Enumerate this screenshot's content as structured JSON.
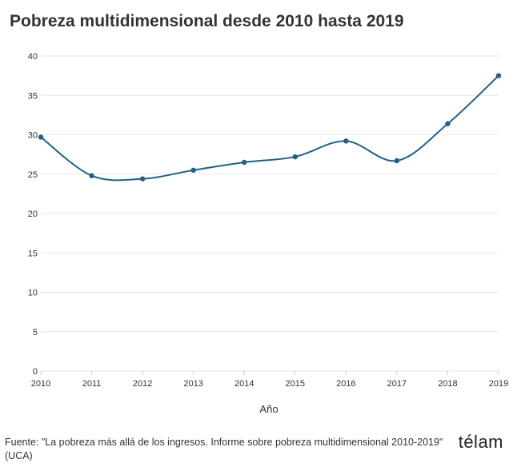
{
  "chart_data": {
    "type": "line",
    "title": "Pobreza multidimensional desde 2010 hasta 2019",
    "xlabel": "Año",
    "ylabel": "",
    "x": [
      2010,
      2011,
      2012,
      2013,
      2014,
      2015,
      2016,
      2017,
      2018,
      2019
    ],
    "series": [
      {
        "name": "Pobreza multidimensional",
        "values": [
          29.7,
          24.8,
          24.4,
          25.5,
          26.5,
          27.2,
          29.2,
          26.7,
          31.4,
          37.5
        ]
      }
    ],
    "ylim": [
      0,
      40
    ],
    "yticks": [
      0,
      5,
      10,
      15,
      20,
      25,
      30,
      35,
      40
    ],
    "grid": true,
    "colors": {
      "line": "#1f6189",
      "grid": "#e6e6e6"
    }
  },
  "footer": {
    "source": "Fuente: \"La pobreza más allá de los ingresos. Informe sobre pobreza multidimensional 2010-2019\" (UCA)",
    "logo": "télam"
  }
}
